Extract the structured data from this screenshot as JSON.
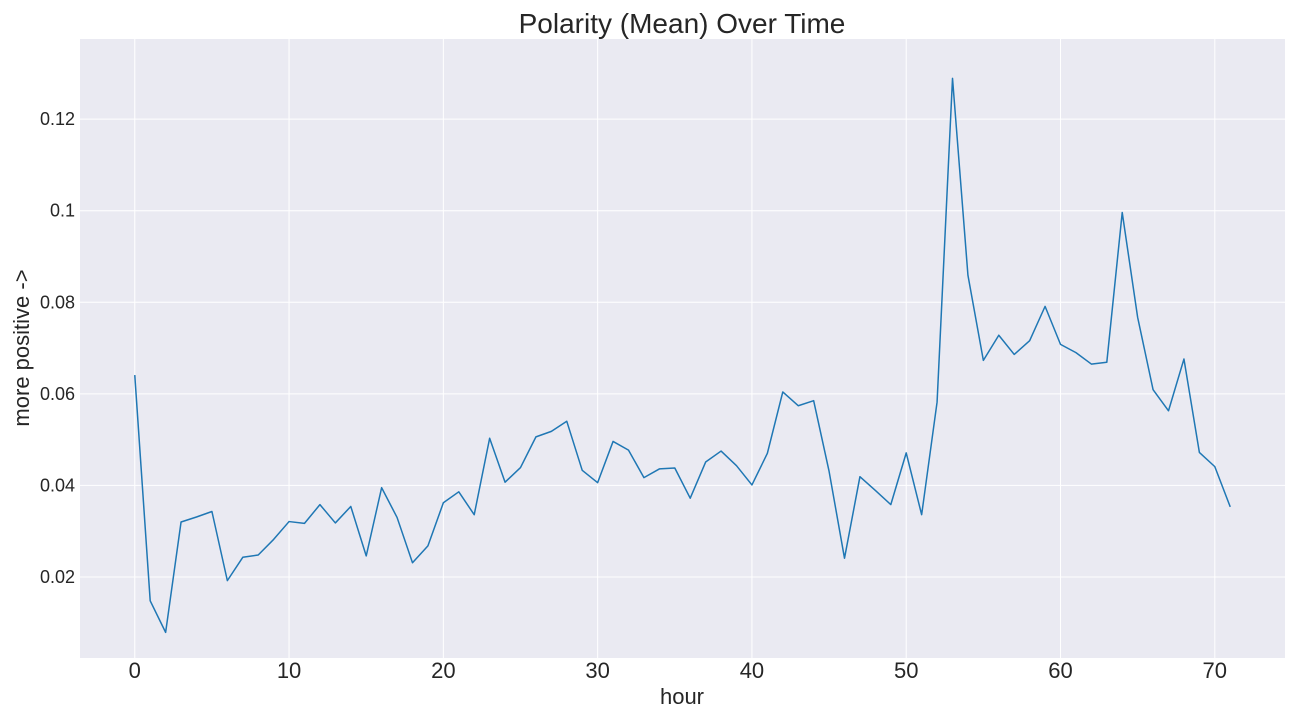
{
  "chart_data": {
    "type": "line",
    "title": "Polarity (Mean) Over Time",
    "xlabel": "hour",
    "ylabel": "more positive ->",
    "xlim": [
      -3.55,
      74.55
    ],
    "ylim": [
      0.0023,
      0.1375
    ],
    "x_ticks": [
      0,
      10,
      20,
      30,
      40,
      50,
      60,
      70
    ],
    "x_tick_labels": [
      "0",
      "10",
      "20",
      "30",
      "40",
      "50",
      "60",
      "70"
    ],
    "y_ticks": [
      0.02,
      0.04,
      0.06,
      0.08,
      0.1,
      0.12
    ],
    "y_tick_labels": [
      "0.02",
      "0.04",
      "0.06",
      "0.08",
      "0.1",
      "0.12"
    ],
    "grid": true,
    "background_color": "#EAEAF2",
    "grid_color": "#FFFFFF",
    "series": [
      {
        "color": "#1F77B4",
        "x": [
          0,
          1,
          2,
          3,
          4,
          5,
          6,
          7,
          8,
          9,
          10,
          11,
          12,
          13,
          14,
          15,
          16,
          17,
          18,
          19,
          20,
          21,
          22,
          23,
          24,
          25,
          26,
          27,
          28,
          29,
          30,
          31,
          32,
          33,
          34,
          35,
          36,
          37,
          38,
          39,
          40,
          41,
          42,
          43,
          44,
          45,
          46,
          47,
          48,
          49,
          50,
          51,
          52,
          53,
          54,
          55,
          56,
          57,
          58,
          59,
          60,
          61,
          62,
          63,
          64,
          65,
          66,
          67,
          68,
          69,
          70,
          71
        ],
        "values": [
          0.0641,
          0.0148,
          0.0079,
          0.032,
          0.0331,
          0.0343,
          0.0192,
          0.0243,
          0.0248,
          0.0282,
          0.0321,
          0.0317,
          0.0358,
          0.0318,
          0.0354,
          0.0246,
          0.0395,
          0.033,
          0.0231,
          0.0268,
          0.0362,
          0.0386,
          0.0336,
          0.0503,
          0.0407,
          0.0439,
          0.0506,
          0.0518,
          0.054,
          0.0433,
          0.0406,
          0.0496,
          0.0477,
          0.0417,
          0.0436,
          0.0438,
          0.0372,
          0.0451,
          0.0475,
          0.0443,
          0.0401,
          0.047,
          0.0604,
          0.0574,
          0.0585,
          0.0431,
          0.0241,
          0.0419,
          0.0389,
          0.0358,
          0.0471,
          0.0336,
          0.0582,
          0.1289,
          0.0859,
          0.0673,
          0.0728,
          0.0686,
          0.0716,
          0.0791,
          0.0708,
          0.069,
          0.0665,
          0.0669,
          0.0996,
          0.0767,
          0.0609,
          0.0563,
          0.0676,
          0.0472,
          0.0441,
          0.0353
        ]
      }
    ]
  }
}
